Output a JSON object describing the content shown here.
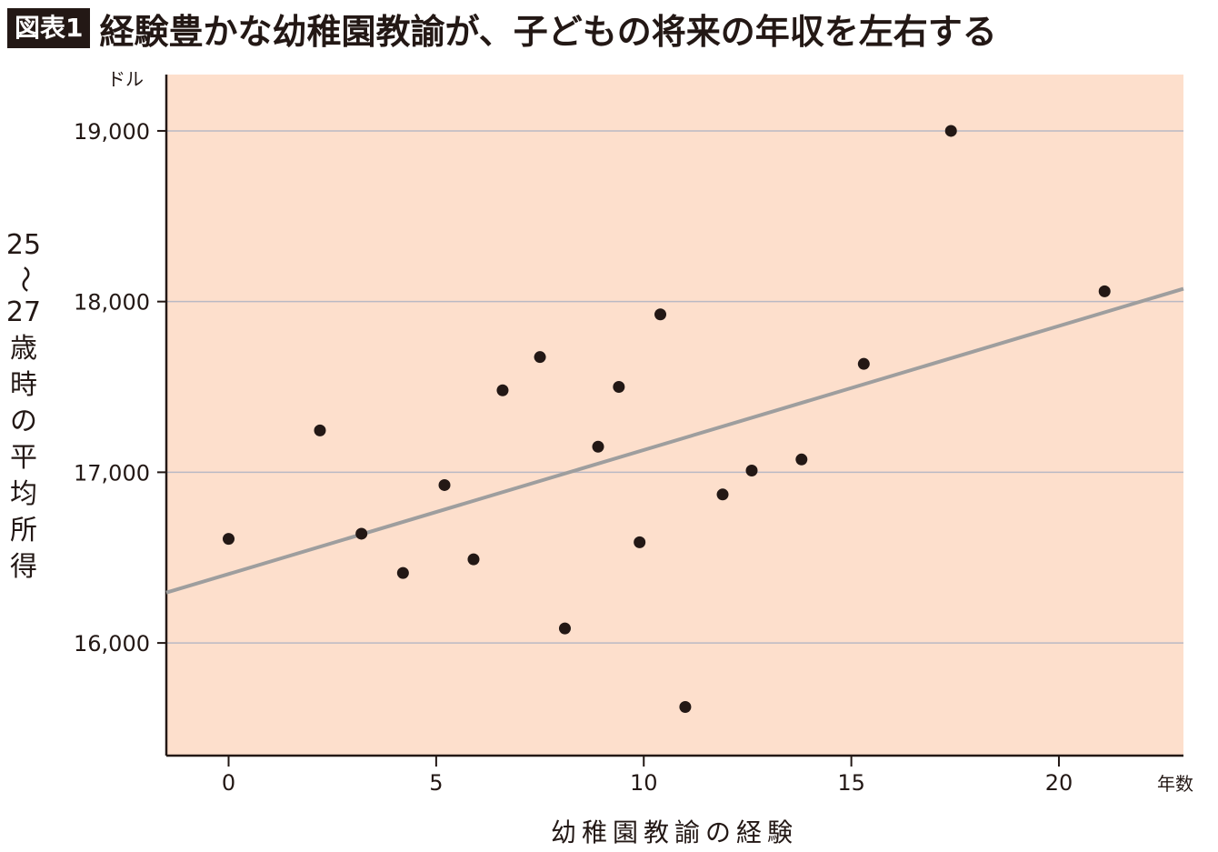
{
  "header": {
    "badge": "図表1",
    "title": "経験豊かな幼稚園教諭が、子どもの将来の年収を左右する"
  },
  "chart_data": {
    "type": "scatter",
    "title": "経験豊かな幼稚園教諭が、子どもの将来の年収を左右する",
    "xlabel": "幼稚園教諭の経験",
    "x_unit": "年数",
    "ylabel": "25〜27歳時の平均所得",
    "y_unit": "ドル",
    "xlim": [
      -1.5,
      23
    ],
    "ylim": [
      15340,
      19330
    ],
    "x_ticks": [
      0,
      5,
      10,
      15,
      20
    ],
    "y_ticks": [
      16000,
      17000,
      18000,
      19000
    ],
    "y_tick_labels": [
      "16,000",
      "17,000",
      "18,000",
      "19,000"
    ],
    "grid": "horizontal",
    "background": "#fddfcc",
    "point_color": "#231815",
    "line_color": "#9e9e9e",
    "points": [
      {
        "x": 0.0,
        "y": 16610
      },
      {
        "x": 2.2,
        "y": 17245
      },
      {
        "x": 3.2,
        "y": 16640
      },
      {
        "x": 4.2,
        "y": 16410
      },
      {
        "x": 5.2,
        "y": 16925
      },
      {
        "x": 5.9,
        "y": 16490
      },
      {
        "x": 6.6,
        "y": 17480
      },
      {
        "x": 7.5,
        "y": 17675
      },
      {
        "x": 8.1,
        "y": 16085
      },
      {
        "x": 8.9,
        "y": 17150
      },
      {
        "x": 9.4,
        "y": 17500
      },
      {
        "x": 9.9,
        "y": 16590
      },
      {
        "x": 10.4,
        "y": 17925
      },
      {
        "x": 11.0,
        "y": 15625
      },
      {
        "x": 11.9,
        "y": 16870
      },
      {
        "x": 12.6,
        "y": 17010
      },
      {
        "x": 13.8,
        "y": 17075
      },
      {
        "x": 15.3,
        "y": 17635
      },
      {
        "x": 17.4,
        "y": 19000
      },
      {
        "x": 21.1,
        "y": 18060
      }
    ],
    "trend_line": {
      "x": [
        -1.5,
        23
      ],
      "y": [
        16295,
        18075
      ]
    }
  }
}
